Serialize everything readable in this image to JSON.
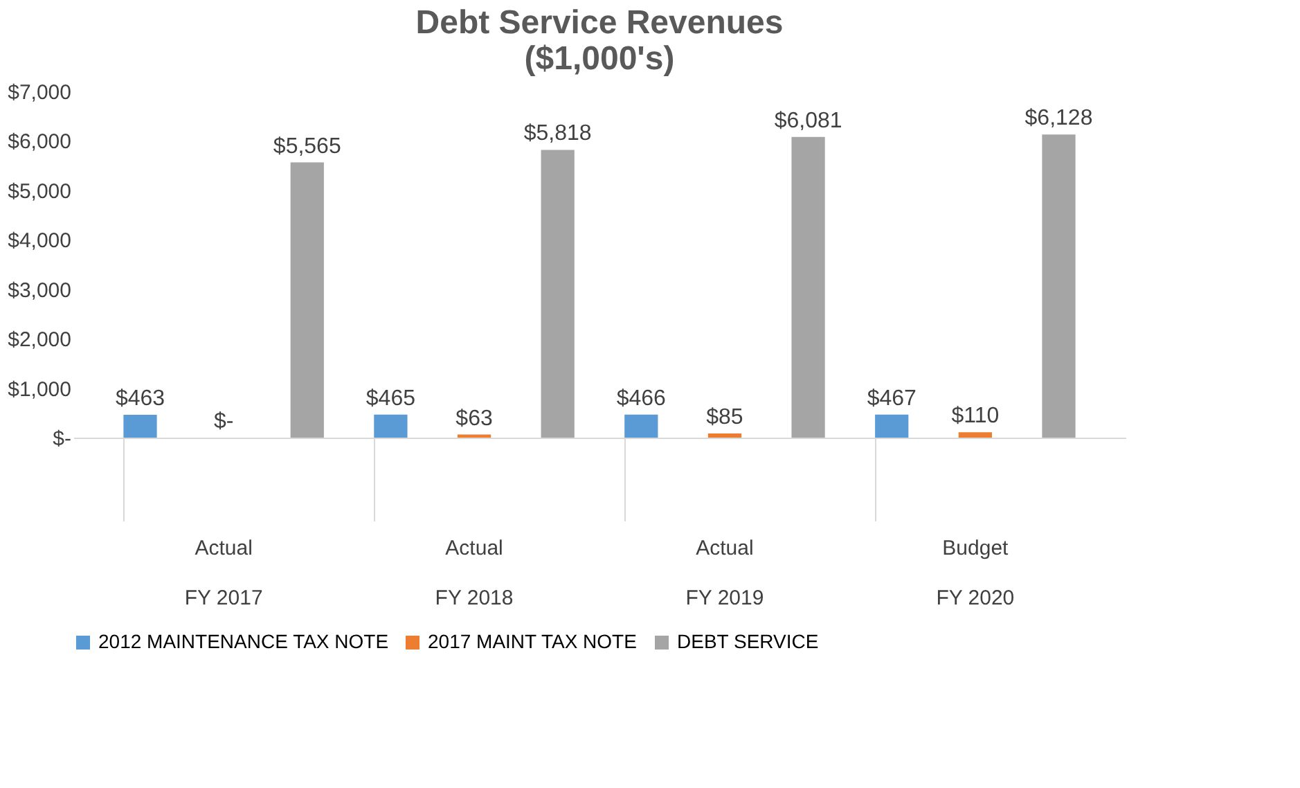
{
  "chart_data": {
    "type": "bar",
    "title": "Debt Service Revenues\n($1,000's)",
    "categories": [
      "Actual\nFY 2017",
      "Actual\nFY 2018",
      "Actual\nFY 2019",
      "Budget\nFY 2020"
    ],
    "series": [
      {
        "name": "2012 MAINTENANCE TAX NOTE",
        "color": "#5b9bd5",
        "values": [
          463,
          465,
          466,
          467
        ],
        "value_labels": [
          "$463",
          "$465",
          "$466",
          "$467"
        ]
      },
      {
        "name": "2017 MAINT TAX NOTE",
        "color": "#ed7d31",
        "values": [
          0,
          63,
          85,
          110
        ],
        "value_labels": [
          "$-",
          "$63",
          "$85",
          "$110"
        ]
      },
      {
        "name": "DEBT SERVICE",
        "color": "#a5a5a5",
        "values": [
          5565,
          5818,
          6081,
          6128
        ],
        "value_labels": [
          "$5,565",
          "$5,818",
          "$6,081",
          "$6,128"
        ]
      }
    ],
    "ylim": [
      0,
      7000
    ],
    "yticks": [
      {
        "value": 0,
        "label": "$-"
      },
      {
        "value": 1000,
        "label": "$1,000"
      },
      {
        "value": 2000,
        "label": "$2,000"
      },
      {
        "value": 3000,
        "label": "$3,000"
      },
      {
        "value": 4000,
        "label": "$4,000"
      },
      {
        "value": 5000,
        "label": "$5,000"
      },
      {
        "value": 6000,
        "label": "$6,000"
      },
      {
        "value": 7000,
        "label": "$7,000"
      }
    ],
    "grid": false,
    "legend": "bottom"
  }
}
